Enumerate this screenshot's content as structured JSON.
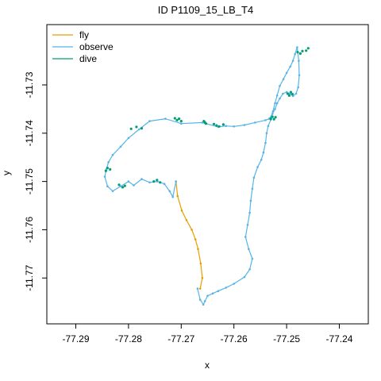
{
  "chart_data": {
    "type": "line",
    "title": "ID P1109_15_LB_T4",
    "xlabel": "x",
    "ylabel": "y",
    "xlim": [
      -77.2955,
      -77.2345
    ],
    "ylim": [
      -11.7795,
      -11.7175
    ],
    "x_ticks": [
      -77.29,
      -77.28,
      -77.27,
      -77.26,
      -77.25,
      -77.24
    ],
    "x_tick_labels": [
      "-77.29",
      "-77.28",
      "-77.27",
      "-77.26",
      "-77.25",
      "-77.24"
    ],
    "y_ticks": [
      -11.73,
      -11.74,
      -11.75,
      -11.76,
      -11.77
    ],
    "y_tick_labels": [
      "-11.73",
      "-11.74",
      "-11.75",
      "-11.76",
      "-11.77"
    ],
    "grid": false,
    "legend_position": "top-left",
    "series": [
      {
        "name": "fly",
        "color": "#E69F00",
        "x": [
          -77.2664,
          -77.266,
          -77.2663,
          -77.2668,
          -77.2673,
          -77.268,
          -77.269,
          -77.2699,
          -77.2707,
          -77.271
        ],
        "y": [
          -11.7722,
          -11.77,
          -11.767,
          -11.764,
          -11.762,
          -11.76,
          -11.758,
          -11.756,
          -11.753,
          -11.75
        ]
      },
      {
        "name": "observe",
        "color": "#56B4E9",
        "x": [
          -77.2669,
          -77.2664,
          -77.2658,
          -77.2655,
          -77.265,
          -77.264,
          -77.263,
          -77.2615,
          -77.26,
          -77.258,
          -77.257,
          -77.2565,
          -77.2572,
          -77.2578,
          -77.2574,
          -77.257,
          -77.2568,
          -77.2565,
          -77.2562,
          -77.2555,
          -77.2548,
          -77.2544,
          -77.254,
          -77.2538,
          -77.2535,
          -77.253,
          -77.2526,
          -77.2522,
          -77.2518,
          -77.2513,
          -77.2506,
          -77.25,
          -77.2493,
          -77.2488,
          -77.2484,
          -77.248,
          -77.2477,
          -77.2476,
          -77.2478,
          -77.2482,
          -77.2488,
          -77.2494,
          -77.25,
          -77.2507,
          -77.2513,
          -77.2518,
          -77.2522,
          -77.2527,
          -77.2533,
          -77.254,
          -77.256,
          -77.258,
          -77.26,
          -77.2615,
          -77.263,
          -77.266,
          -77.27,
          -77.273,
          -77.276,
          -77.278,
          -77.28,
          -77.2815,
          -77.283,
          -77.2838,
          -77.2842,
          -77.2845,
          -77.284,
          -77.283,
          -77.2815,
          -77.28,
          -77.279,
          -77.2775,
          -77.276,
          -77.2745,
          -77.2732,
          -77.2722,
          -77.2716,
          -77.271
        ],
        "y": [
          -11.7722,
          -11.7745,
          -11.7755,
          -11.7748,
          -11.7737,
          -11.7732,
          -11.7727,
          -11.772,
          -11.7712,
          -11.7698,
          -11.7682,
          -11.766,
          -11.764,
          -11.7615,
          -11.759,
          -11.7565,
          -11.754,
          -11.7515,
          -11.7492,
          -11.747,
          -11.7455,
          -11.744,
          -11.742,
          -11.74,
          -11.7385,
          -11.7372,
          -11.7355,
          -11.7338,
          -11.7322,
          -11.7302,
          -11.7288,
          -11.7275,
          -11.7262,
          -11.725,
          -11.7236,
          -11.7222,
          -11.725,
          -11.728,
          -11.7305,
          -11.7318,
          -11.7323,
          -11.7318,
          -11.7315,
          -11.7318,
          -11.7328,
          -11.7338,
          -11.735,
          -11.736,
          -11.737,
          -11.7373,
          -11.7378,
          -11.7383,
          -11.7386,
          -11.7385,
          -11.7387,
          -11.7378,
          -11.738,
          -11.737,
          -11.7375,
          -11.7392,
          -11.741,
          -11.7428,
          -11.7445,
          -11.746,
          -11.7475,
          -11.749,
          -11.751,
          -11.752,
          -11.751,
          -11.75,
          -11.7508,
          -11.7495,
          -11.7502,
          -11.75,
          -11.7505,
          -11.752,
          -11.7532,
          -11.75
        ]
      },
      {
        "name": "dive",
        "color": "#009E73",
        "x": [
          -77.253,
          -77.2527,
          -77.2524,
          -77.2521,
          -77.2498,
          -77.2495,
          -77.2492,
          -77.2489,
          -77.2479,
          -77.2474,
          -77.247,
          -77.2463,
          -77.2459,
          -77.262,
          -77.2628,
          -77.2633,
          -77.2638,
          -77.2657,
          -77.2653,
          -77.2655,
          -77.27,
          -77.2704,
          -77.2708,
          -77.2712,
          -77.2775,
          -77.2785,
          -77.2795,
          -77.2843,
          -77.284,
          -77.2835,
          -77.2818,
          -77.2811,
          -77.2807,
          -77.2752,
          -77.2746,
          -77.274
        ],
        "y": [
          -11.737,
          -11.7366,
          -11.7371,
          -11.7367,
          -11.7318,
          -11.7322,
          -11.7315,
          -11.7319,
          -11.7232,
          -11.7235,
          -11.723,
          -11.7229,
          -11.7224,
          -11.7382,
          -11.7386,
          -11.7384,
          -11.7381,
          -11.7375,
          -11.738,
          -11.7378,
          -11.7375,
          -11.737,
          -11.7373,
          -11.7369,
          -11.739,
          -11.7387,
          -11.7391,
          -11.7478,
          -11.7472,
          -11.7475,
          -11.7507,
          -11.7512,
          -11.7509,
          -11.75,
          -11.7497,
          -11.7502
        ]
      }
    ]
  }
}
